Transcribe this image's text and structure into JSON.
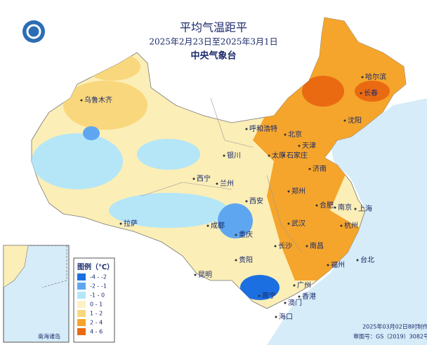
{
  "header": {
    "title": "平均气温距平",
    "subtitle": "2025年2月23日至2025年3月1日",
    "agency": "中央气象台"
  },
  "legend": {
    "title": "图例（℃）",
    "entries": [
      {
        "label": "-4 - -2",
        "color": "#1c6fe0"
      },
      {
        "label": "-2 - -1",
        "color": "#5ea7f0"
      },
      {
        "label": "-1 - 0",
        "color": "#b4e6f8"
      },
      {
        "label": "0 - 1",
        "color": "#fcf2c4"
      },
      {
        "label": "1 - 2",
        "color": "#f9d77d"
      },
      {
        "label": "2 - 4",
        "color": "#f5a52b"
      },
      {
        "label": "4 - 6",
        "color": "#ea6a12"
      }
    ]
  },
  "cities": [
    "哈尔滨",
    "长春",
    "沈阳",
    "呼和浩特",
    "北京",
    "天津",
    "石家庄",
    "太原",
    "济南",
    "银川",
    "西宁",
    "兰州",
    "郑州",
    "西安",
    "合肥",
    "南京",
    "上海",
    "杭州",
    "武汉",
    "成都",
    "重庆",
    "拉萨",
    "长沙",
    "南昌",
    "福州",
    "台北",
    "贵阳",
    "昆明",
    "广州",
    "南宁",
    "香港",
    "澳门",
    "海口",
    "乌鲁木齐"
  ],
  "inset": {
    "label": "南海诸岛"
  },
  "footer": {
    "made": "2025年03月02日8时制作",
    "approval": "审图号：GS（2019）3082号"
  }
}
